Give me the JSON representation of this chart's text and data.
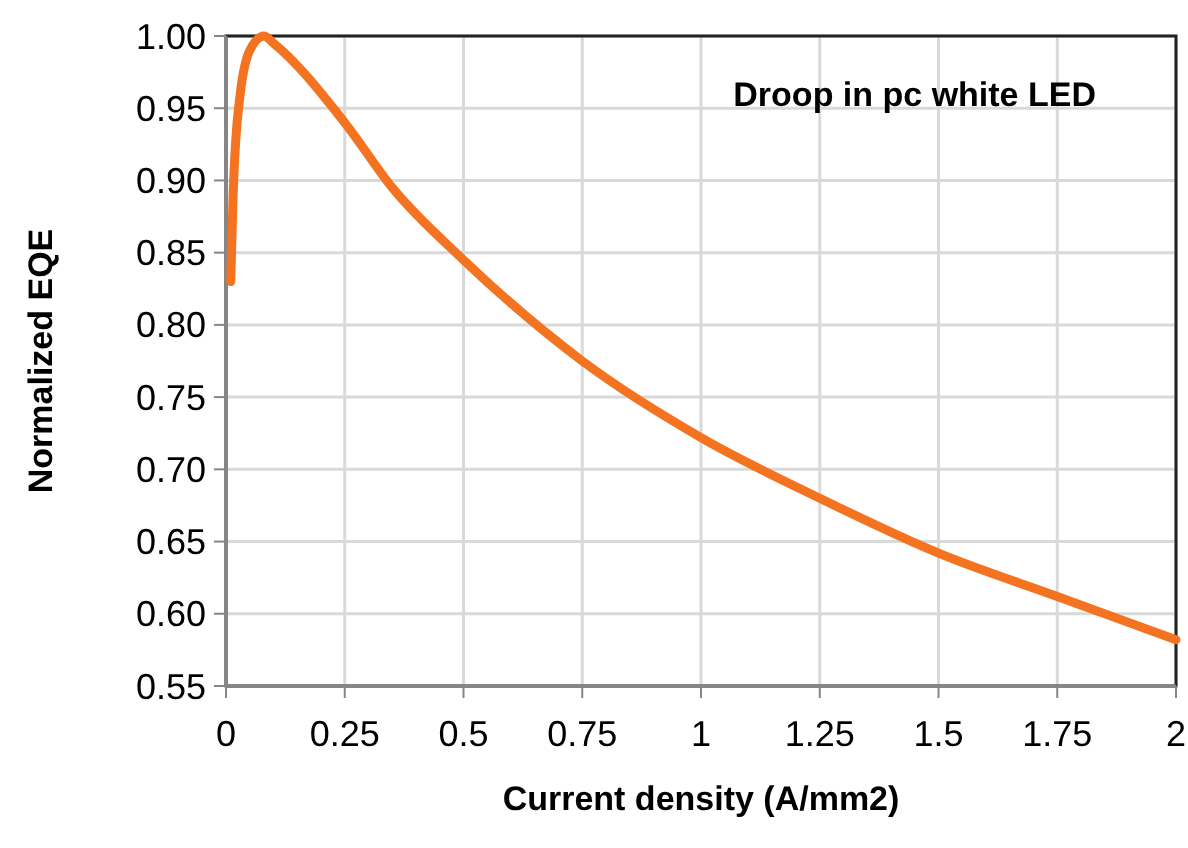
{
  "chart_data": {
    "type": "line",
    "xlabel": "Current density (A/mm2)",
    "ylabel": "Normalized EQE",
    "annotations": [
      "Droop in pc white LED"
    ],
    "x": [
      0.01,
      0.015,
      0.02,
      0.03,
      0.05,
      0.08,
      0.1,
      0.25,
      0.35,
      0.5,
      0.75,
      1,
      1.25,
      1.5,
      1.75,
      2
    ],
    "series": [
      {
        "color": "#f47321",
        "values": [
          0.83,
          0.89,
          0.925,
          0.96,
          0.99,
          1.0,
          0.995,
          0.94,
          0.895,
          0.845,
          0.775,
          0.722,
          0.68,
          0.642,
          0.612,
          0.582
        ]
      }
    ],
    "xlim": [
      0,
      2
    ],
    "ylim": [
      0.55,
      1.0
    ],
    "xticks": [
      0,
      0.25,
      0.5,
      0.75,
      1,
      1.25,
      1.5,
      1.75,
      2
    ],
    "yticks": [
      {
        "value": 0.55,
        "label": "0.55"
      },
      {
        "value": 0.6,
        "label": "0.60"
      },
      {
        "value": 0.65,
        "label": "0.65"
      },
      {
        "value": 0.7,
        "label": "0.70"
      },
      {
        "value": 0.75,
        "label": "0.75"
      },
      {
        "value": 0.8,
        "label": "0.80"
      },
      {
        "value": 0.85,
        "label": "0.85"
      },
      {
        "value": 0.9,
        "label": "0.90"
      },
      {
        "value": 0.95,
        "label": "0.95"
      },
      {
        "value": 1,
        "label": "1.00"
      }
    ],
    "grid": true,
    "marker": "none",
    "line_style": "solid"
  }
}
